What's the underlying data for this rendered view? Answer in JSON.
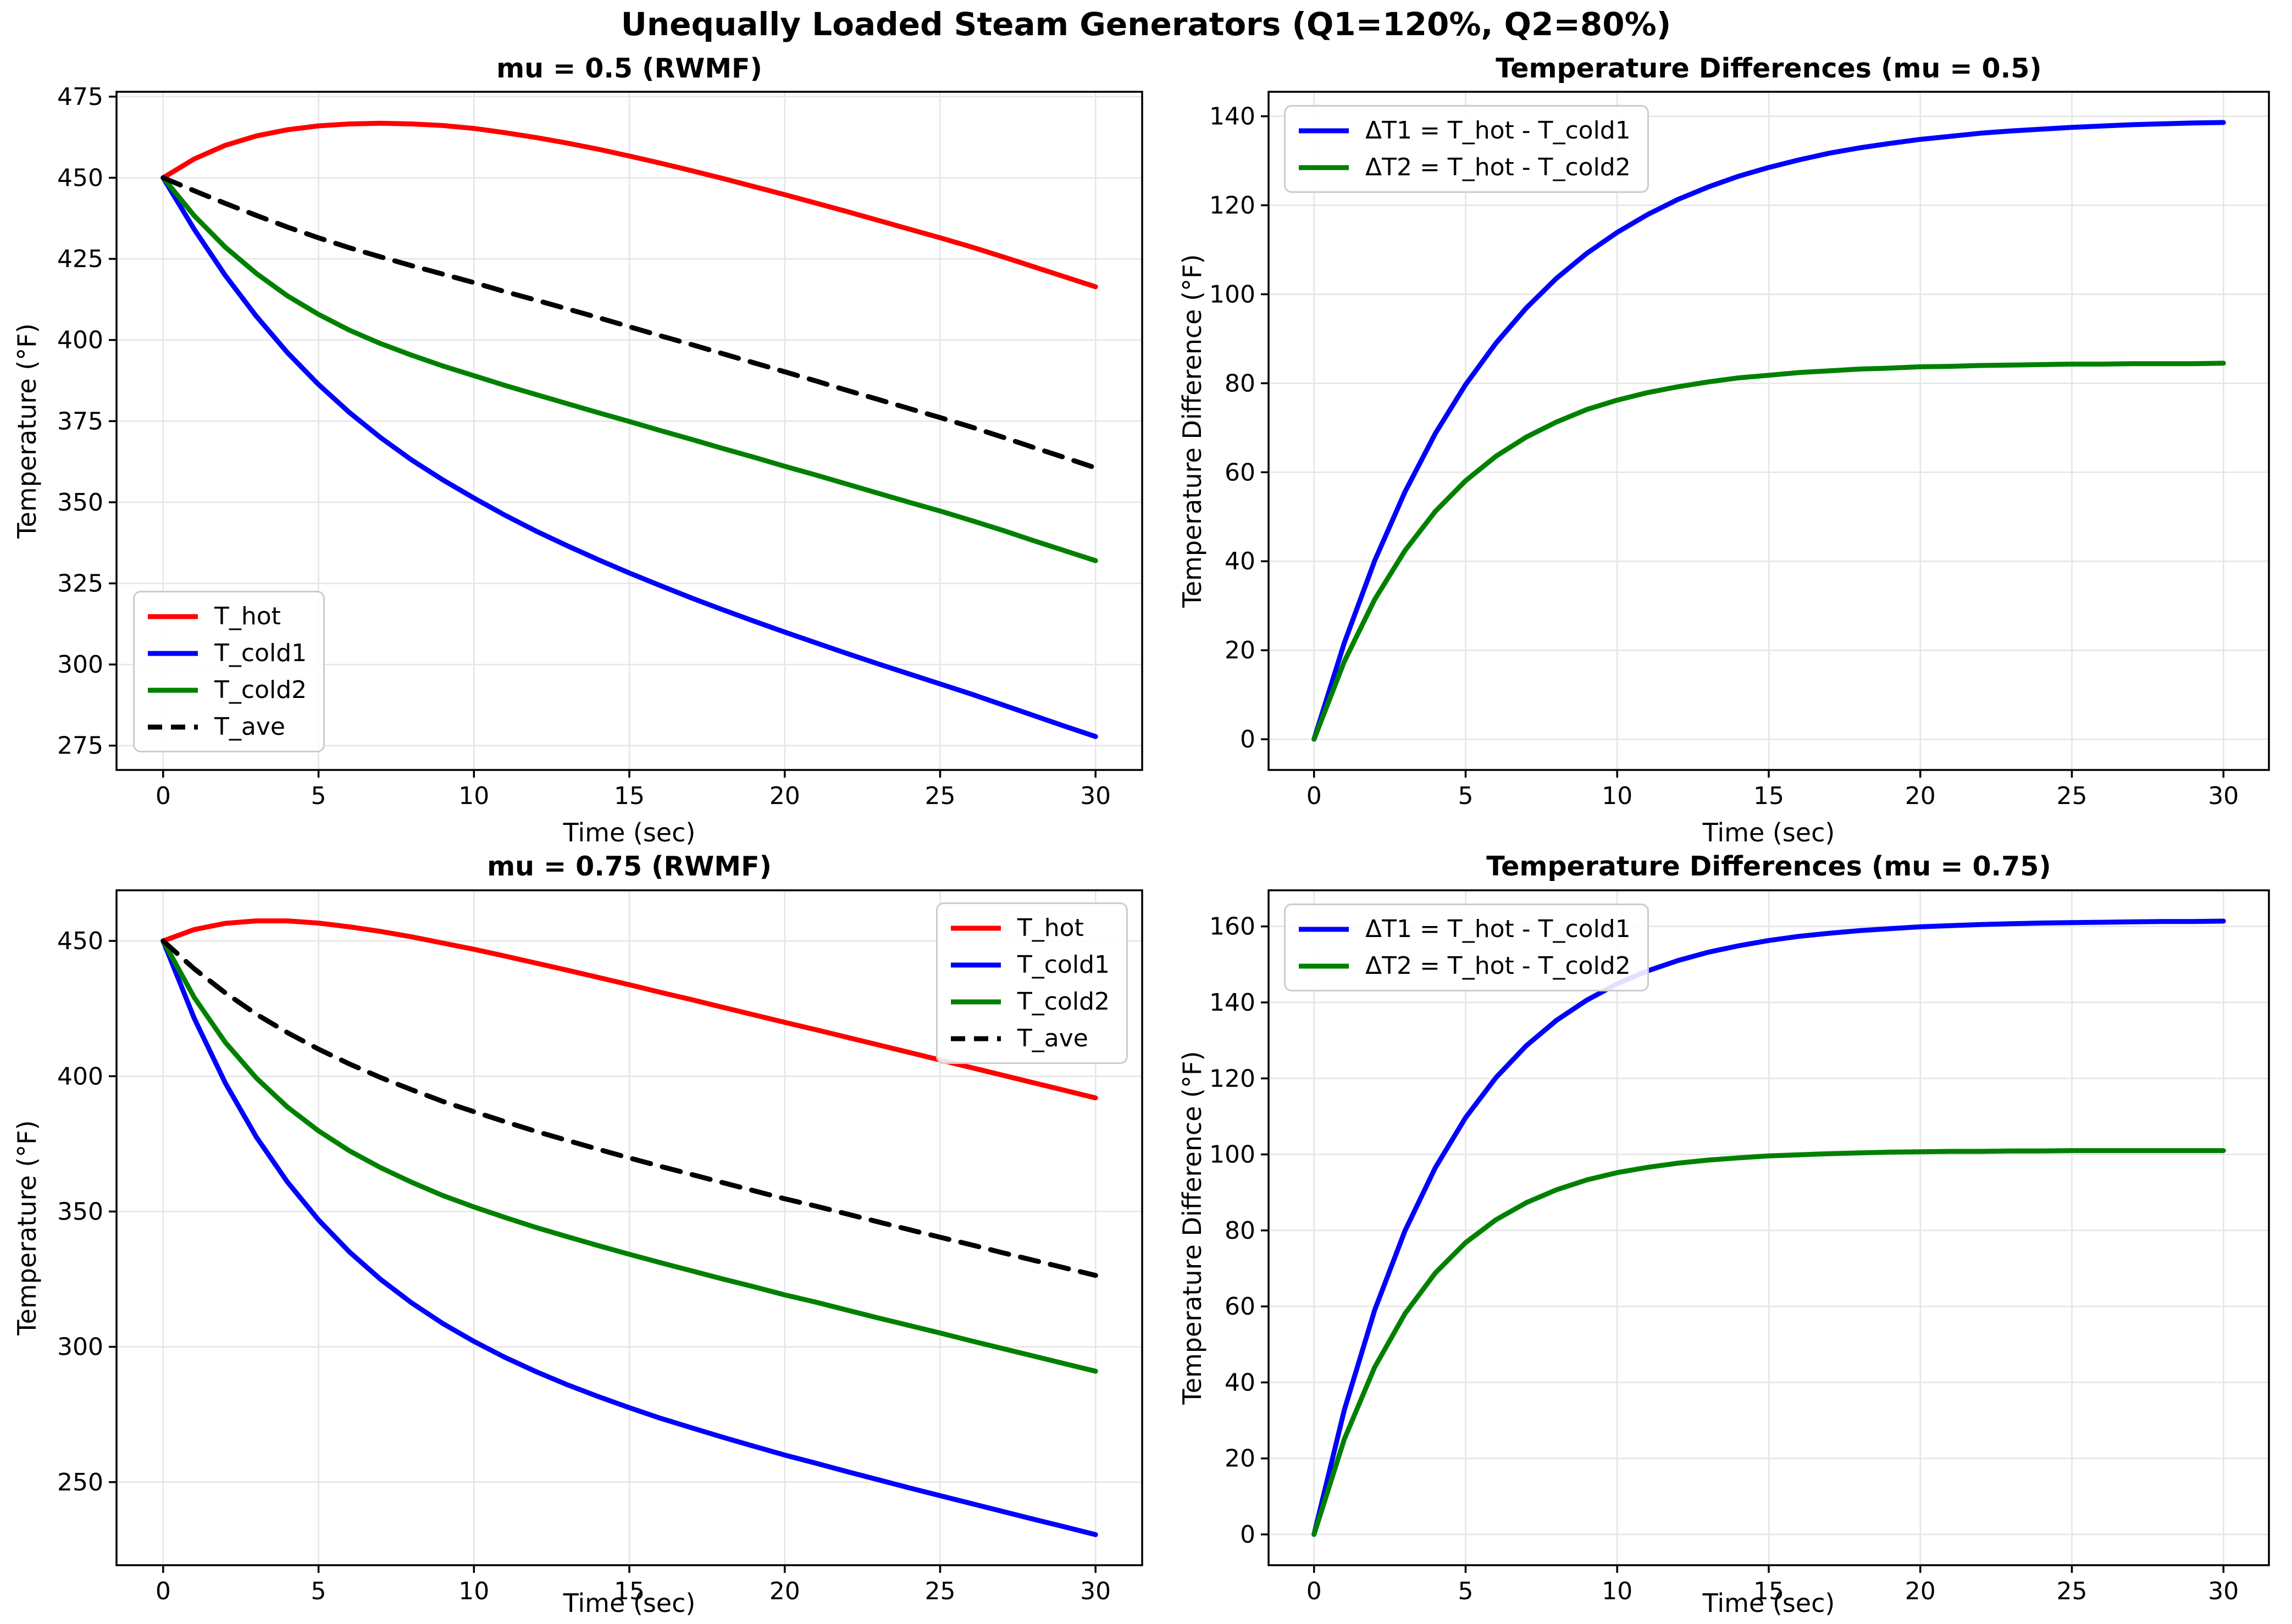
{
  "figure": {
    "suptitle": "Unequally Loaded Steam Generators (Q1=120%, Q2=80%)",
    "background_color": "#ffffff",
    "grid_color": "#e5e5e5",
    "frame_color": "#000000"
  },
  "chart_data": [
    {
      "type": "line",
      "title": "mu = 0.5 (RWMF)",
      "xlabel": "Time (sec)",
      "ylabel": "Temperature (°F)",
      "xlim": [
        -1.5,
        31.5
      ],
      "ylim": [
        267.5,
        476.5
      ],
      "xticks": [
        0,
        5,
        10,
        15,
        20,
        25,
        30
      ],
      "yticks": [
        275,
        300,
        325,
        350,
        375,
        400,
        425,
        450,
        475
      ],
      "grid": true,
      "legend_loc": "lower-left",
      "x": [
        0,
        1,
        2,
        3,
        4,
        5,
        6,
        7,
        8,
        9,
        10,
        11,
        12,
        13,
        14,
        15,
        16,
        17,
        18,
        19,
        20,
        21,
        22,
        23,
        24,
        25,
        26,
        27,
        28,
        29,
        30
      ],
      "series": [
        {
          "name": "T_hot",
          "color": "#ff0000",
          "dash": false,
          "values": [
            450,
            455.8,
            460,
            462.9,
            464.8,
            466,
            466.6,
            466.8,
            466.6,
            466.1,
            465.2,
            463.9,
            462.4,
            460.7,
            458.8,
            456.7,
            454.5,
            452.2,
            449.8,
            447.3,
            444.8,
            442.2,
            439.6,
            436.9,
            434.2,
            431.5,
            428.7,
            425.7,
            422.6,
            419.5,
            416.4
          ]
        },
        {
          "name": "T_cold1",
          "color": "#0000ff",
          "dash": false,
          "values": [
            450,
            434.1,
            419.9,
            407.3,
            396.1,
            386.3,
            377.6,
            369.9,
            363,
            356.9,
            351.3,
            346,
            341.1,
            336.6,
            332.3,
            328.2,
            324.3,
            320.5,
            316.9,
            313.4,
            310,
            306.7,
            303.4,
            300.2,
            297.1,
            294,
            290.9,
            287.6,
            284.3,
            281,
            277.8
          ]
        },
        {
          "name": "T_cold2",
          "color": "#008000",
          "dash": false,
          "values": [
            450,
            438.3,
            428.6,
            420.5,
            413.6,
            407.9,
            403,
            398.9,
            395.3,
            392,
            389,
            386,
            383.2,
            380.4,
            377.6,
            374.9,
            372.1,
            369.4,
            366.6,
            363.9,
            361.1,
            358.4,
            355.6,
            352.8,
            350,
            347.3,
            344.4,
            341.4,
            338.2,
            335.1,
            332
          ]
        },
        {
          "name": "T_ave",
          "color": "#000000",
          "dash": true,
          "values": [
            450,
            446,
            442.1,
            438.4,
            434.8,
            431.5,
            428.4,
            425.6,
            422.9,
            420.3,
            417.7,
            414.9,
            412.3,
            409.6,
            406.9,
            404.1,
            401.3,
            398.6,
            395.8,
            393,
            390.2,
            387.4,
            384.5,
            381.7,
            378.9,
            376.1,
            373.2,
            370.1,
            366.9,
            363.8,
            360.6
          ]
        }
      ]
    },
    {
      "type": "line",
      "title": "Temperature Differences (mu = 0.5)",
      "xlabel": "Time (sec)",
      "ylabel": "Temperature Difference (°F)",
      "xlim": [
        -1.5,
        31.5
      ],
      "ylim": [
        -6.9,
        145.5
      ],
      "xticks": [
        0,
        5,
        10,
        15,
        20,
        25,
        30
      ],
      "yticks": [
        0,
        20,
        40,
        60,
        80,
        100,
        120,
        140
      ],
      "grid": true,
      "legend_loc": "upper-left",
      "x": [
        0,
        1,
        2,
        3,
        4,
        5,
        6,
        7,
        8,
        9,
        10,
        11,
        12,
        13,
        14,
        15,
        16,
        17,
        18,
        19,
        20,
        21,
        22,
        23,
        24,
        25,
        26,
        27,
        28,
        29,
        30
      ],
      "series": [
        {
          "name": "ΔT1 = T_hot - T_cold1",
          "color": "#0000ff",
          "dash": false,
          "values": [
            0,
            21.7,
            40.1,
            55.6,
            68.7,
            79.7,
            89,
            96.9,
            103.6,
            109.2,
            113.9,
            117.9,
            121.3,
            124.1,
            126.5,
            128.5,
            130.2,
            131.7,
            132.9,
            133.9,
            134.8,
            135.5,
            136.2,
            136.7,
            137.1,
            137.5,
            137.8,
            138.1,
            138.3,
            138.5,
            138.6
          ]
        },
        {
          "name": "ΔT2 = T_hot - T_cold2",
          "color": "#008000",
          "dash": false,
          "values": [
            0,
            17.5,
            31.4,
            42.4,
            51.2,
            58.1,
            63.6,
            67.9,
            71.3,
            74.1,
            76.2,
            77.9,
            79.2,
            80.3,
            81.2,
            81.8,
            82.4,
            82.8,
            83.2,
            83.4,
            83.7,
            83.8,
            84,
            84.1,
            84.2,
            84.3,
            84.3,
            84.4,
            84.4,
            84.4,
            84.5
          ]
        }
      ]
    },
    {
      "type": "line",
      "title": "mu = 0.75 (RWMF)",
      "xlabel": "Time (sec)",
      "ylabel": "Temperature (°F)",
      "xlim": [
        -1.5,
        31.5
      ],
      "ylim": [
        219.3,
        468.7
      ],
      "xticks": [
        0,
        5,
        10,
        15,
        20,
        25,
        30
      ],
      "yticks": [
        250,
        300,
        350,
        400,
        450
      ],
      "grid": true,
      "legend_loc": "upper-right",
      "x": [
        0,
        1,
        2,
        3,
        4,
        5,
        6,
        7,
        8,
        9,
        10,
        11,
        12,
        13,
        14,
        15,
        16,
        17,
        18,
        19,
        20,
        21,
        22,
        23,
        24,
        25,
        26,
        27,
        28,
        29,
        30
      ],
      "series": [
        {
          "name": "T_hot",
          "color": "#ff0000",
          "dash": false,
          "values": [
            450,
            454.2,
            456.5,
            457.4,
            457.4,
            456.6,
            455.2,
            453.5,
            451.5,
            449.2,
            446.9,
            444.4,
            441.8,
            439.2,
            436.5,
            433.8,
            431,
            428.3,
            425.5,
            422.7,
            419.9,
            417.2,
            414.4,
            411.6,
            408.8,
            406,
            403.2,
            400.4,
            397.6,
            394.8,
            392
          ]
        },
        {
          "name": "T_cold1",
          "color": "#0000ff",
          "dash": false,
          "values": [
            450,
            421.4,
            397.5,
            377.5,
            360.9,
            346.9,
            335,
            324.9,
            316.2,
            308.6,
            302,
            296.1,
            290.8,
            286,
            281.6,
            277.5,
            273.6,
            270.1,
            266.6,
            263.3,
            260,
            257,
            253.9,
            250.9,
            247.9,
            245,
            242.1,
            239.2,
            236.3,
            233.5,
            230.6
          ]
        },
        {
          "name": "T_cold2",
          "color": "#008000",
          "dash": false,
          "values": [
            450,
            429.1,
            412.5,
            399.3,
            388.6,
            379.8,
            372.4,
            366.2,
            360.8,
            355.9,
            351.7,
            347.8,
            344.1,
            340.7,
            337.4,
            334.2,
            331.1,
            328.1,
            325.1,
            322.2,
            319.2,
            316.5,
            313.6,
            310.7,
            307.9,
            305.1,
            302.2,
            299.4,
            296.6,
            293.8,
            291
          ]
        },
        {
          "name": "T_ave",
          "color": "#000000",
          "dash": true,
          "values": [
            450,
            439.7,
            430.8,
            422.9,
            416.1,
            410,
            404.5,
            399.5,
            395,
            390.7,
            386.9,
            383.2,
            379.6,
            376.3,
            373,
            369.8,
            366.7,
            363.7,
            360.7,
            357.7,
            354.7,
            352,
            349.1,
            346.2,
            343.3,
            340.5,
            337.7,
            334.8,
            332,
            329.2,
            326.4
          ]
        }
      ]
    },
    {
      "type": "line",
      "title": "Temperature Differences (mu = 0.75)",
      "xlabel": "Time (sec)",
      "ylabel": "Temperature Difference (°F)",
      "xlim": [
        -1.5,
        31.5
      ],
      "ylim": [
        -8.1,
        169.5
      ],
      "xticks": [
        0,
        5,
        10,
        15,
        20,
        25,
        30
      ],
      "yticks": [
        0,
        20,
        40,
        60,
        80,
        100,
        120,
        140,
        160
      ],
      "grid": true,
      "legend_loc": "upper-left",
      "x": [
        0,
        1,
        2,
        3,
        4,
        5,
        6,
        7,
        8,
        9,
        10,
        11,
        12,
        13,
        14,
        15,
        16,
        17,
        18,
        19,
        20,
        21,
        22,
        23,
        24,
        25,
        26,
        27,
        28,
        29,
        30
      ],
      "series": [
        {
          "name": "ΔT1 = T_hot - T_cold1",
          "color": "#0000ff",
          "dash": false,
          "values": [
            0,
            32.8,
            59,
            79.9,
            96.5,
            109.7,
            120.2,
            128.6,
            135.3,
            140.6,
            144.9,
            148.3,
            151,
            153.2,
            154.9,
            156.3,
            157.4,
            158.2,
            158.9,
            159.4,
            159.9,
            160.2,
            160.5,
            160.7,
            160.9,
            161,
            161.1,
            161.2,
            161.3,
            161.3,
            161.4
          ]
        },
        {
          "name": "ΔT2 = T_hot - T_cold2",
          "color": "#008000",
          "dash": false,
          "values": [
            0,
            25.1,
            44,
            58.1,
            68.8,
            76.8,
            82.8,
            87.3,
            90.7,
            93.3,
            95.2,
            96.6,
            97.7,
            98.5,
            99.1,
            99.6,
            99.9,
            100.2,
            100.4,
            100.6,
            100.7,
            100.8,
            100.8,
            100.9,
            100.9,
            101,
            101,
            101,
            101,
            101,
            101
          ]
        }
      ]
    }
  ]
}
